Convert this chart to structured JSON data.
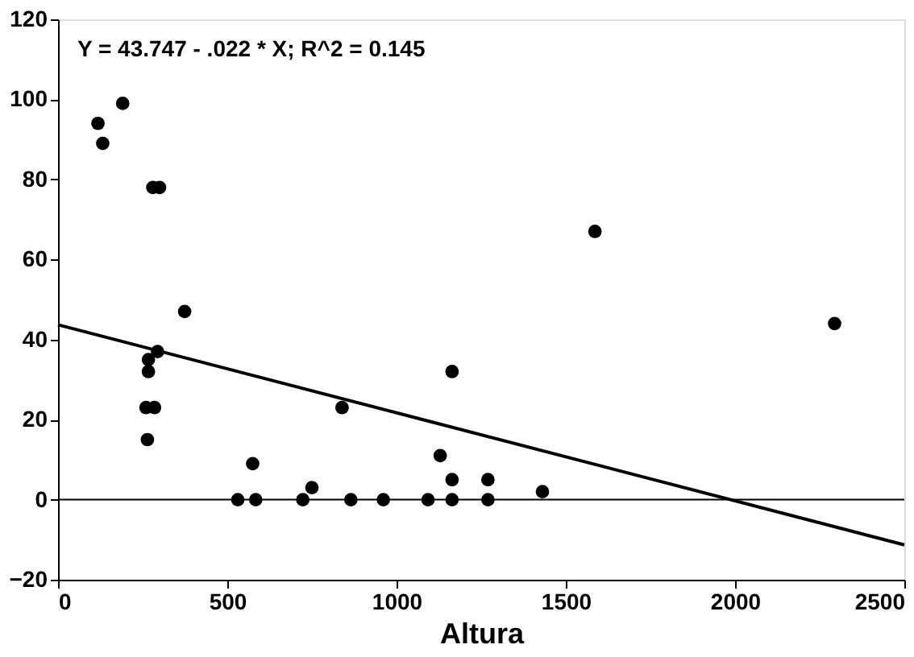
{
  "chart_data": {
    "type": "scatter",
    "xlabel": "Altura",
    "annotations": [
      "Y = 43.747 - .022 * X; R^2 = 0.145"
    ],
    "xlim": [
      0,
      2500
    ],
    "xticks": [
      0,
      500,
      1000,
      1500,
      2000,
      2500
    ],
    "ylim": [
      -20,
      120
    ],
    "yticks": [
      -20,
      0,
      20,
      40,
      60,
      80,
      100,
      120
    ],
    "grid": false,
    "series": [
      {
        "type": "scatter",
        "marker": "circle",
        "color": "#000000",
        "x": [
          118,
          132,
          191,
          280,
          300,
          374,
          294,
          267,
          267,
          260,
          285,
          264,
          575,
          531,
          584,
          750,
          723,
          839,
          865,
          961,
          1093,
          1164,
          1129,
          1164,
          1164,
          1270,
          1270,
          1431,
          1586,
          2294
        ],
        "values": [
          94,
          89,
          99,
          78,
          78,
          47,
          37,
          35,
          32,
          23,
          23,
          15,
          9,
          0,
          0,
          3,
          0,
          23,
          0,
          0,
          0,
          32,
          11,
          5,
          0,
          5,
          0,
          2,
          67,
          44
        ]
      },
      {
        "type": "line",
        "color": "#000000",
        "x": [
          0,
          2500
        ],
        "values": [
          43.7,
          -11.3
        ]
      }
    ],
    "ref_lines": [
      {
        "axis": "y",
        "value": 0,
        "color": "#000000"
      }
    ]
  }
}
